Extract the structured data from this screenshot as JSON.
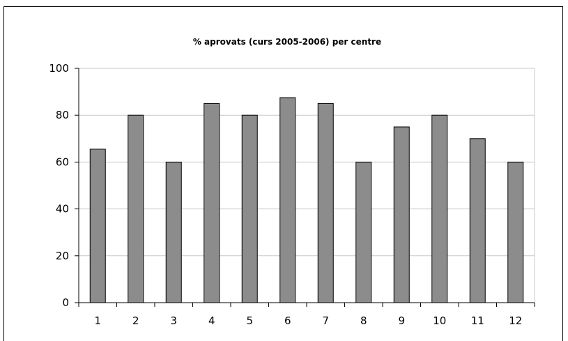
{
  "chart_data": {
    "type": "bar",
    "title": "% aprovats (curs 2005-2006) per centre",
    "xlabel": "",
    "ylabel": "",
    "categories": [
      "1",
      "2",
      "3",
      "4",
      "5",
      "6",
      "7",
      "8",
      "9",
      "10",
      "11",
      "12"
    ],
    "values": [
      65.5,
      80,
      60,
      85,
      80,
      87.5,
      85,
      60,
      75,
      80,
      70,
      60
    ],
    "ylim": [
      0,
      100
    ],
    "yticks": [
      "0",
      "20",
      "40",
      "60",
      "80",
      "100"
    ],
    "grid": true,
    "legend": "none",
    "colors": {
      "bar_fill": "#8c8c8c",
      "bar_stroke": "#000000",
      "grid": "#c8c8c8",
      "axis": "#000000"
    }
  }
}
